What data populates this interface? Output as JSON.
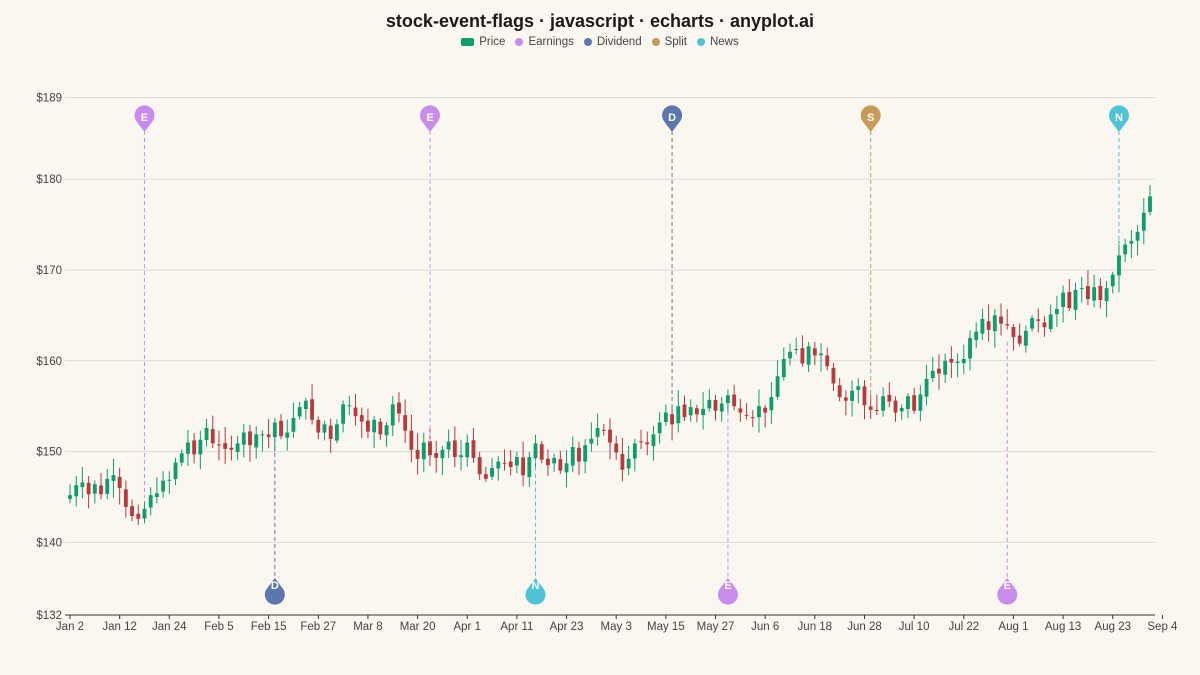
{
  "chart_data": {
    "type": "candlestick",
    "title": "stock-event-flags · javascript · echarts · anyplot.ai",
    "legend": [
      {
        "name": "Price",
        "color": "#0e9e6e",
        "shape": "rect"
      },
      {
        "name": "Earnings",
        "color": "#c98cee",
        "shape": "circle"
      },
      {
        "name": "Dividend",
        "color": "#5b77ad",
        "shape": "circle"
      },
      {
        "name": "Split",
        "color": "#c99958",
        "shape": "circle"
      },
      {
        "name": "News",
        "color": "#4fc3d6",
        "shape": "circle"
      }
    ],
    "legend_position": "top-center",
    "y_axis": {
      "min": 132,
      "max": 189,
      "ticks": [
        "$132",
        "$140",
        "$150",
        "$160",
        "$170",
        "$180",
        "$189"
      ],
      "tick_values": [
        132,
        140,
        150,
        160,
        170,
        180,
        189
      ],
      "grid": true
    },
    "x_axis": {
      "ticks": [
        "Jan 2",
        "Jan 12",
        "Jan 24",
        "Feb 5",
        "Feb 15",
        "Feb 27",
        "Mar 8",
        "Mar 20",
        "Apr 1",
        "Apr 11",
        "Apr 23",
        "May 3",
        "May 15",
        "May 27",
        "Jun 6",
        "Jun 18",
        "Jun 28",
        "Jul 10",
        "Jul 22",
        "Aug 1",
        "Aug 13",
        "Aug 23",
        "Sep 4"
      ],
      "tick_index": [
        0,
        8,
        16,
        24,
        32,
        40,
        48,
        56,
        64,
        72,
        80,
        88,
        96,
        104,
        112,
        120,
        128,
        136,
        144,
        152,
        160,
        168,
        176
      ]
    },
    "up_color": "#0e9e6e",
    "down_color": "#b83a3a",
    "closes": [
      145.2,
      146.3,
      146.6,
      145.3,
      146.4,
      145.3,
      147.0,
      147.4,
      146.0,
      143.9,
      142.9,
      142.6,
      143.7,
      145.2,
      145.4,
      146.8,
      146.9,
      148.8,
      149.8,
      151.0,
      149.7,
      151.3,
      152.6,
      150.9,
      150.7,
      150.3,
      150.2,
      150.9,
      152.1,
      150.7,
      151.9,
      151.9,
      151.6,
      153.2,
      151.7,
      152.1,
      153.7,
      154.9,
      155.6,
      153.5,
      152.1,
      153.0,
      151.4,
      153.0,
      155.2,
      155.1,
      153.9,
      153.3,
      152.2,
      153.5,
      151.9,
      152.9,
      155.2,
      154.2,
      152.3,
      150.2,
      149.2,
      151.0,
      149.6,
      149.3,
      150.2,
      151.1,
      149.4,
      149.6,
      151.0,
      149.3,
      147.5,
      147.0,
      148.2,
      148.9,
      148.7,
      148.3,
      149.4,
      147.4,
      149.4,
      150.9,
      149.1,
      148.5,
      149.3,
      147.9,
      148.7,
      150.5,
      148.9,
      150.7,
      151.4,
      152.6,
      152.3,
      151.0,
      149.9,
      148.0,
      149.2,
      150.9,
      151.1,
      150.8,
      151.9,
      153.2,
      154.3,
      153.0,
      155.0,
      153.8,
      154.9,
      154.1,
      154.7,
      155.7,
      154.5,
      155.3,
      156.2,
      155.0,
      154.3,
      154.0,
      153.7,
      155.0,
      154.3,
      156.0,
      158.3,
      160.2,
      161.0,
      161.3,
      159.7,
      161.6,
      160.6,
      160.8,
      159.4,
      157.5,
      156.0,
      155.6,
      156.7,
      157.2,
      155.1,
      154.6,
      154.5,
      156.1,
      155.5,
      154.3,
      154.8,
      156.1,
      154.5,
      156.3,
      158.0,
      158.9,
      158.6,
      160.0,
      159.8,
      159.9,
      160.2,
      162.5,
      163.2,
      164.6,
      163.4,
      165.0,
      164.1,
      163.9,
      162.6,
      161.9,
      163.3,
      164.7,
      164.4,
      163.7,
      165.1,
      165.7,
      167.5,
      165.8,
      167.8,
      168.0,
      166.8,
      168.1,
      166.7,
      168.0,
      169.5,
      171.6,
      172.8,
      173.2,
      174.2,
      176.3,
      178.1
    ],
    "events": [
      {
        "index": 12,
        "type": "Earnings",
        "letter": "E",
        "position": "top"
      },
      {
        "index": 33,
        "type": "Dividend",
        "letter": "D",
        "position": "bottom"
      },
      {
        "index": 58,
        "type": "Earnings",
        "letter": "E",
        "position": "top"
      },
      {
        "index": 75,
        "type": "News",
        "letter": "N",
        "position": "bottom"
      },
      {
        "index": 97,
        "type": "Dividend",
        "letter": "D",
        "position": "top"
      },
      {
        "index": 106,
        "type": "Earnings",
        "letter": "E",
        "position": "bottom"
      },
      {
        "index": 129,
        "type": "Split",
        "letter": "S",
        "position": "top"
      },
      {
        "index": 151,
        "type": "Earnings",
        "letter": "E",
        "position": "bottom"
      },
      {
        "index": 169,
        "type": "News",
        "letter": "N",
        "position": "top"
      }
    ]
  }
}
